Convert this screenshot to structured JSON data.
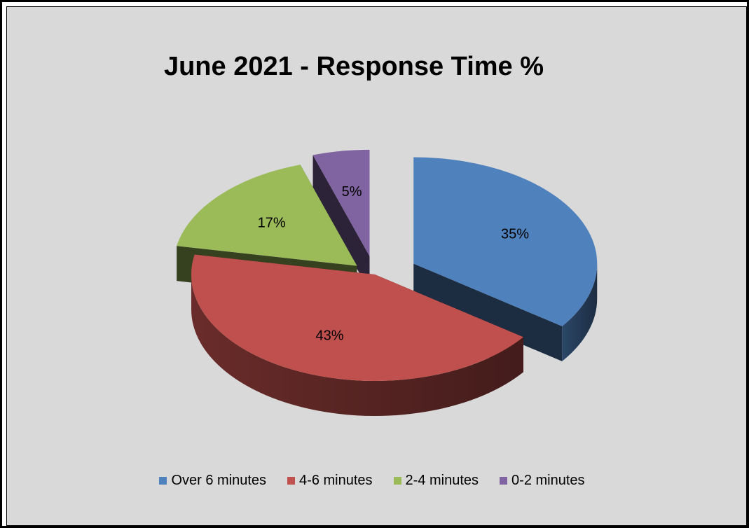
{
  "chart_data": {
    "type": "pie",
    "title": "June 2021 - Response Time %",
    "categories": [
      "Over 6 minutes",
      "4-6 minutes",
      "2-4 minutes",
      "0-2 minutes"
    ],
    "values": [
      35,
      43,
      17,
      5
    ],
    "labels": [
      "35%",
      "43%",
      "17%",
      "5%"
    ],
    "colors": [
      "#4f81bd",
      "#c0504d",
      "#9bbb59",
      "#8064a2"
    ],
    "exploded": true,
    "three_d": true,
    "legend_position": "bottom"
  }
}
